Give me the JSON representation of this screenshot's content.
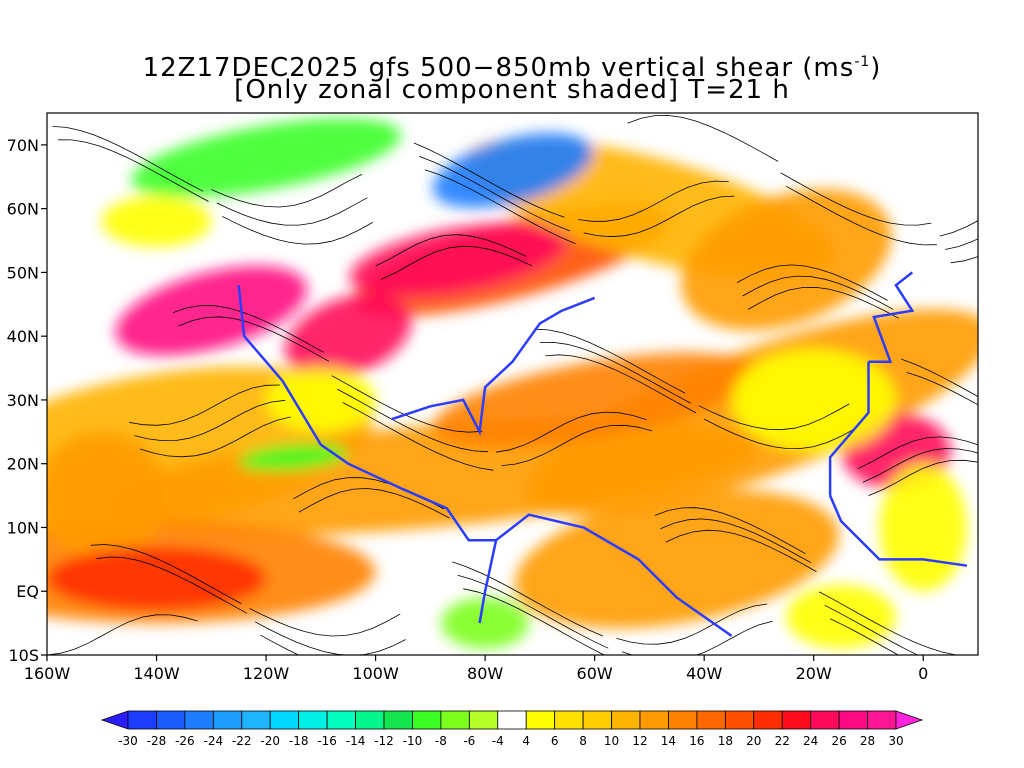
{
  "title": {
    "line1_prefix": "12Z17DEC2025 gfs 500−850mb vertical shear (ms",
    "line1_sup": "-1",
    "line1_suffix": ")",
    "line2": "[Only zonal component shaded] T=21 h"
  },
  "map": {
    "lat_labels": [
      "70N",
      "60N",
      "50N",
      "40N",
      "30N",
      "20N",
      "10N",
      "EQ",
      "10S"
    ],
    "lon_labels": [
      "160W",
      "140W",
      "120W",
      "100W",
      "80W",
      "60W",
      "40W",
      "20W",
      "0"
    ],
    "extent": {
      "lon_min": -160,
      "lon_max": 10,
      "lat_min": -10,
      "lat_max": 75
    },
    "layers": [
      "zonal-shear-shading",
      "shear-streamlines",
      "coastlines",
      "country-borders",
      "us-state-borders"
    ],
    "coastline_color": "#2b3cff",
    "streamline_color": "#000000"
  },
  "colorbar": {
    "labels": [
      "-30",
      "-28",
      "-26",
      "-24",
      "-22",
      "-20",
      "-18",
      "-16",
      "-14",
      "-12",
      "-10",
      "-8",
      "-6",
      "-4",
      "4",
      "6",
      "8",
      "10",
      "12",
      "14",
      "16",
      "18",
      "20",
      "22",
      "24",
      "26",
      "28",
      "30"
    ],
    "colors": [
      "#1e3cff",
      "#1c5cff",
      "#1f7dff",
      "#1f9dff",
      "#1fb4ff",
      "#00d8ff",
      "#00f0e6",
      "#00ffc0",
      "#00f58a",
      "#14e450",
      "#3cff28",
      "#7dff1e",
      "#b4ff28",
      "#ffffff",
      "#ffff00",
      "#ffe100",
      "#ffcc00",
      "#ffb400",
      "#ff9b00",
      "#ff8200",
      "#ff6900",
      "#ff5000",
      "#ff2d00",
      "#ff0a1e",
      "#ff0a5a",
      "#ff0a82",
      "#ff1493"
    ],
    "under_color": "#2a1eff",
    "over_color": "#ff23dc"
  }
}
